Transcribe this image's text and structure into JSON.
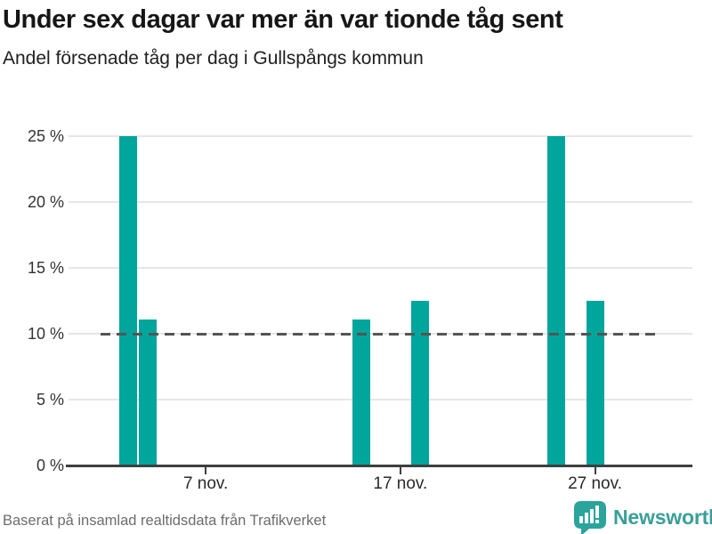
{
  "header": {
    "title": "Under sex dagar var mer än var tionde tåg sent",
    "subtitle": "Andel försenade tåg per dag i Gullspångs kommun"
  },
  "chart_data": {
    "type": "bar",
    "title": "Under sex dagar var mer än var tionde tåg sent",
    "subtitle": "Andel försenade tåg per dag i Gullspångs kommun",
    "x_unit": "day of November",
    "categories": [
      "3 nov.",
      "4 nov.",
      "15 nov.",
      "18 nov.",
      "25 nov.",
      "27 nov."
    ],
    "x_days": [
      3,
      4,
      15,
      18,
      25,
      27
    ],
    "values": [
      25,
      11.1,
      11.1,
      12.5,
      25,
      12.5
    ],
    "value_unit": "%",
    "xlim_days": [
      1,
      30
    ],
    "ylim": [
      0,
      25
    ],
    "y_ticks": [
      25,
      20,
      15,
      10,
      5,
      0
    ],
    "y_tick_labels": [
      "25 %",
      "20 %",
      "15 %",
      "10 %",
      "5 %",
      "0 %"
    ],
    "x_ticks_days": [
      7,
      17,
      27
    ],
    "x_tick_labels": [
      "7 nov.",
      "17 nov.",
      "27 nov."
    ],
    "reference_line": {
      "value": 10,
      "style": "dashed"
    },
    "grid": true,
    "legend": "none",
    "bar_color": "#00a59b"
  },
  "footer": {
    "source_text": "Baserat på insamlad realtidsdata från Trafikverket",
    "logo_text": "Newsworthy"
  },
  "colors": {
    "bar": "#00a59b",
    "brand_teal": "#38a099",
    "reference_line": "#555555",
    "gridline": "#e6e6e6",
    "axis": "#3f3f3f"
  }
}
